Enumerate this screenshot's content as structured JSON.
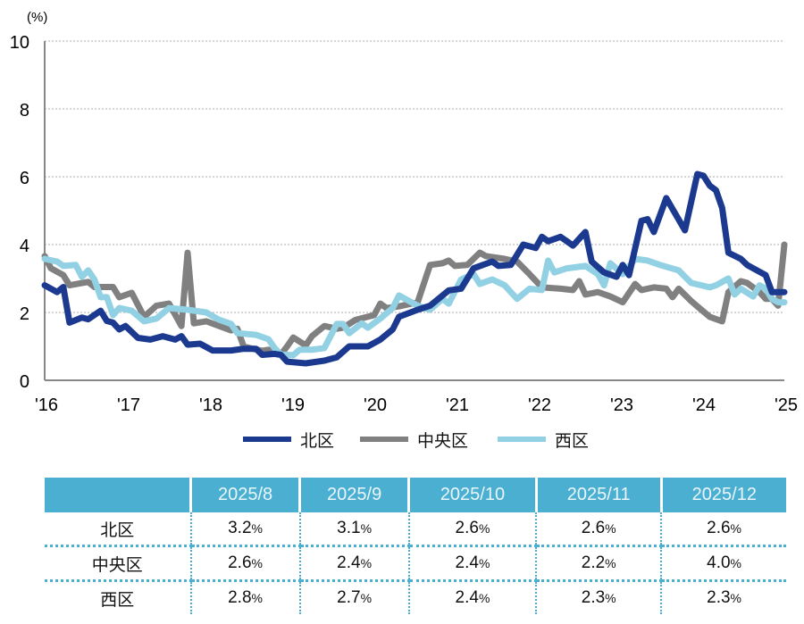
{
  "chart_data": {
    "type": "line",
    "ylabel": "(%)",
    "ylim": [
      0,
      10
    ],
    "yticks": [
      0,
      2,
      4,
      6,
      8,
      10
    ],
    "xlim": [
      "2016-01",
      "2025-12"
    ],
    "xtick_labels": [
      "'16",
      "'17",
      "'18",
      "'19",
      "'20",
      "'21",
      "'22",
      "'23",
      "'24",
      "'25"
    ],
    "grid": "horizontal dotted",
    "legend_position": "bottom",
    "series": [
      {
        "name": "北区",
        "color": "#1b3a8f",
        "points": [
          [
            "2016-01",
            2.8
          ],
          [
            "2016-03",
            2.6
          ],
          [
            "2016-04",
            2.75
          ],
          [
            "2016-05",
            1.7
          ],
          [
            "2016-07",
            1.85
          ],
          [
            "2016-08",
            1.8
          ],
          [
            "2016-10",
            2.05
          ],
          [
            "2016-11",
            1.75
          ],
          [
            "2016-12",
            1.7
          ],
          [
            "2017-01",
            1.5
          ],
          [
            "2017-02",
            1.6
          ],
          [
            "2017-04",
            1.25
          ],
          [
            "2017-06",
            1.2
          ],
          [
            "2017-08",
            1.3
          ],
          [
            "2017-10",
            1.2
          ],
          [
            "2017-11",
            1.3
          ],
          [
            "2017-12",
            1.05
          ],
          [
            "2018-02",
            1.08
          ],
          [
            "2018-04",
            0.88
          ],
          [
            "2018-07",
            0.88
          ],
          [
            "2018-09",
            0.93
          ],
          [
            "2018-11",
            0.93
          ],
          [
            "2018-12",
            0.75
          ],
          [
            "2019-02",
            0.78
          ],
          [
            "2019-03",
            0.75
          ],
          [
            "2019-04",
            0.55
          ],
          [
            "2019-07",
            0.5
          ],
          [
            "2019-10",
            0.58
          ],
          [
            "2019-12",
            0.68
          ],
          [
            "2020-02",
            1.0
          ],
          [
            "2020-05",
            1.0
          ],
          [
            "2020-07",
            1.2
          ],
          [
            "2020-09",
            1.5
          ],
          [
            "2020-10",
            1.87
          ],
          [
            "2021-01",
            2.08
          ],
          [
            "2021-03",
            2.2
          ],
          [
            "2021-06",
            2.65
          ],
          [
            "2021-08",
            2.7
          ],
          [
            "2021-10",
            3.3
          ],
          [
            "2022-01",
            3.5
          ],
          [
            "2022-02",
            3.37
          ],
          [
            "2022-04",
            3.4
          ],
          [
            "2022-06",
            4.0
          ],
          [
            "2022-08",
            3.9
          ],
          [
            "2022-09",
            4.23
          ],
          [
            "2022-10",
            4.1
          ],
          [
            "2022-12",
            4.23
          ],
          [
            "2023-02",
            3.97
          ],
          [
            "2023-04",
            4.37
          ],
          [
            "2023-05",
            3.5
          ],
          [
            "2023-07",
            3.18
          ],
          [
            "2023-09",
            3.05
          ],
          [
            "2023-10",
            3.4
          ],
          [
            "2023-11",
            3.1
          ],
          [
            "2024-01",
            4.7
          ],
          [
            "2024-02",
            4.75
          ],
          [
            "2024-03",
            4.37
          ],
          [
            "2024-05",
            5.37
          ],
          [
            "2024-08",
            4.42
          ],
          [
            "2024-10",
            6.08
          ],
          [
            "2024-11",
            6.03
          ],
          [
            "2024-12",
            5.74
          ],
          [
            "2025-01",
            5.6
          ],
          [
            "2025-02",
            5.08
          ],
          [
            "2025-03",
            3.76
          ],
          [
            "2025-05",
            3.58
          ],
          [
            "2025-06",
            3.4
          ],
          [
            "2025-08",
            3.2
          ],
          [
            "2025-09",
            3.1
          ],
          [
            "2025-10",
            2.6
          ],
          [
            "2025-11",
            2.6
          ],
          [
            "2025-12",
            2.6
          ]
        ]
      },
      {
        "name": "中央区",
        "color": "#808080",
        "points": [
          [
            "2016-01",
            3.66
          ],
          [
            "2016-02",
            3.3
          ],
          [
            "2016-04",
            3.1
          ],
          [
            "2016-05",
            2.8
          ],
          [
            "2016-08",
            2.9
          ],
          [
            "2016-09",
            2.75
          ],
          [
            "2016-12",
            2.75
          ],
          [
            "2017-01",
            2.45
          ],
          [
            "2017-03",
            2.58
          ],
          [
            "2017-05",
            1.87
          ],
          [
            "2017-07",
            2.2
          ],
          [
            "2017-09",
            2.26
          ],
          [
            "2017-11",
            1.6
          ],
          [
            "2017-12",
            3.76
          ],
          [
            "2018-01",
            1.68
          ],
          [
            "2018-03",
            1.74
          ],
          [
            "2018-07",
            1.47
          ],
          [
            "2018-08",
            1.52
          ],
          [
            "2018-09",
            1.0
          ],
          [
            "2018-10",
            0.95
          ],
          [
            "2018-12",
            0.87
          ],
          [
            "2019-01",
            0.9
          ],
          [
            "2019-03",
            0.76
          ],
          [
            "2019-04",
            1.0
          ],
          [
            "2019-05",
            1.26
          ],
          [
            "2019-07",
            1.03
          ],
          [
            "2019-08",
            1.3
          ],
          [
            "2019-10",
            1.6
          ],
          [
            "2019-12",
            1.52
          ],
          [
            "2020-01",
            1.55
          ],
          [
            "2020-03",
            1.78
          ],
          [
            "2020-06",
            1.92
          ],
          [
            "2020-07",
            2.26
          ],
          [
            "2020-08",
            2.13
          ],
          [
            "2020-10",
            2.18
          ],
          [
            "2021-01",
            2.3
          ],
          [
            "2021-03",
            3.4
          ],
          [
            "2021-05",
            3.45
          ],
          [
            "2021-06",
            3.53
          ],
          [
            "2021-07",
            3.37
          ],
          [
            "2021-09",
            3.4
          ],
          [
            "2021-11",
            3.76
          ],
          [
            "2021-12",
            3.66
          ],
          [
            "2022-03",
            3.58
          ],
          [
            "2022-05",
            3.5
          ],
          [
            "2022-07",
            3.13
          ],
          [
            "2022-09",
            2.74
          ],
          [
            "2022-12",
            2.7
          ],
          [
            "2023-02",
            2.66
          ],
          [
            "2023-03",
            2.92
          ],
          [
            "2023-04",
            2.53
          ],
          [
            "2023-06",
            2.6
          ],
          [
            "2023-08",
            2.47
          ],
          [
            "2023-10",
            2.3
          ],
          [
            "2023-12",
            2.84
          ],
          [
            "2024-01",
            2.66
          ],
          [
            "2024-03",
            2.74
          ],
          [
            "2024-05",
            2.7
          ],
          [
            "2024-06",
            2.45
          ],
          [
            "2024-07",
            2.7
          ],
          [
            "2024-09",
            2.34
          ],
          [
            "2024-10",
            2.18
          ],
          [
            "2024-12",
            1.87
          ],
          [
            "2025-02",
            1.74
          ],
          [
            "2025-03",
            2.6
          ],
          [
            "2025-05",
            2.92
          ],
          [
            "2025-06",
            2.87
          ],
          [
            "2025-08",
            2.6
          ],
          [
            "2025-09",
            2.4
          ],
          [
            "2025-10",
            2.4
          ],
          [
            "2025-11",
            2.2
          ],
          [
            "2025-12",
            4.0
          ]
        ]
      },
      {
        "name": "西区",
        "color": "#92d1e4",
        "points": [
          [
            "2016-01",
            3.58
          ],
          [
            "2016-03",
            3.5
          ],
          [
            "2016-04",
            3.37
          ],
          [
            "2016-06",
            3.4
          ],
          [
            "2016-07",
            3.05
          ],
          [
            "2016-08",
            3.24
          ],
          [
            "2016-09",
            2.97
          ],
          [
            "2016-10",
            2.45
          ],
          [
            "2016-11",
            2.45
          ],
          [
            "2016-12",
            1.92
          ],
          [
            "2017-01",
            2.13
          ],
          [
            "2017-03",
            2.05
          ],
          [
            "2017-05",
            1.74
          ],
          [
            "2017-07",
            1.82
          ],
          [
            "2017-09",
            2.13
          ],
          [
            "2017-12",
            2.08
          ],
          [
            "2018-03",
            2.0
          ],
          [
            "2018-05",
            1.79
          ],
          [
            "2018-07",
            1.66
          ],
          [
            "2018-08",
            1.39
          ],
          [
            "2018-11",
            1.34
          ],
          [
            "2019-01",
            1.21
          ],
          [
            "2019-02",
            0.95
          ],
          [
            "2019-03",
            0.76
          ],
          [
            "2019-05",
            0.74
          ],
          [
            "2019-06",
            0.9
          ],
          [
            "2019-08",
            0.9
          ],
          [
            "2019-10",
            0.95
          ],
          [
            "2019-12",
            1.66
          ],
          [
            "2020-01",
            1.66
          ],
          [
            "2020-02",
            1.39
          ],
          [
            "2020-04",
            1.68
          ],
          [
            "2020-05",
            1.55
          ],
          [
            "2020-07",
            1.82
          ],
          [
            "2020-09",
            2.13
          ],
          [
            "2020-10",
            2.5
          ],
          [
            "2021-01",
            2.2
          ],
          [
            "2021-03",
            2.08
          ],
          [
            "2021-05",
            2.4
          ],
          [
            "2021-06",
            2.26
          ],
          [
            "2021-08",
            2.97
          ],
          [
            "2021-10",
            3.13
          ],
          [
            "2021-11",
            2.84
          ],
          [
            "2022-01",
            2.97
          ],
          [
            "2022-03",
            2.8
          ],
          [
            "2022-05",
            2.4
          ],
          [
            "2022-07",
            2.7
          ],
          [
            "2022-09",
            2.66
          ],
          [
            "2022-10",
            3.53
          ],
          [
            "2022-11",
            3.18
          ],
          [
            "2023-01",
            3.3
          ],
          [
            "2023-04",
            3.37
          ],
          [
            "2023-06",
            3.13
          ],
          [
            "2023-07",
            2.8
          ],
          [
            "2023-08",
            3.45
          ],
          [
            "2023-10",
            3.13
          ],
          [
            "2023-12",
            3.58
          ],
          [
            "2024-02",
            3.53
          ],
          [
            "2024-04",
            3.4
          ],
          [
            "2024-07",
            3.24
          ],
          [
            "2024-09",
            2.87
          ],
          [
            "2024-12",
            2.74
          ],
          [
            "2025-01",
            2.8
          ],
          [
            "2025-03",
            3.0
          ],
          [
            "2025-04",
            2.53
          ],
          [
            "2025-05",
            2.7
          ],
          [
            "2025-07",
            2.47
          ],
          [
            "2025-08",
            2.8
          ],
          [
            "2025-09",
            2.7
          ],
          [
            "2025-10",
            2.4
          ],
          [
            "2025-11",
            2.3
          ],
          [
            "2025-12",
            2.3
          ]
        ]
      }
    ]
  },
  "table": {
    "headers": [
      "",
      "2025/8",
      "2025/9",
      "2025/10",
      "2025/11",
      "2025/12"
    ],
    "unit": "%",
    "rows": [
      {
        "label": "北区",
        "values": [
          "3.2",
          "3.1",
          "2.6",
          "2.6",
          "2.6"
        ]
      },
      {
        "label": "中央区",
        "values": [
          "2.6",
          "2.4",
          "2.4",
          "2.2",
          "4.0"
        ]
      },
      {
        "label": "西区",
        "values": [
          "2.8",
          "2.7",
          "2.4",
          "2.3",
          "2.3"
        ]
      }
    ]
  }
}
